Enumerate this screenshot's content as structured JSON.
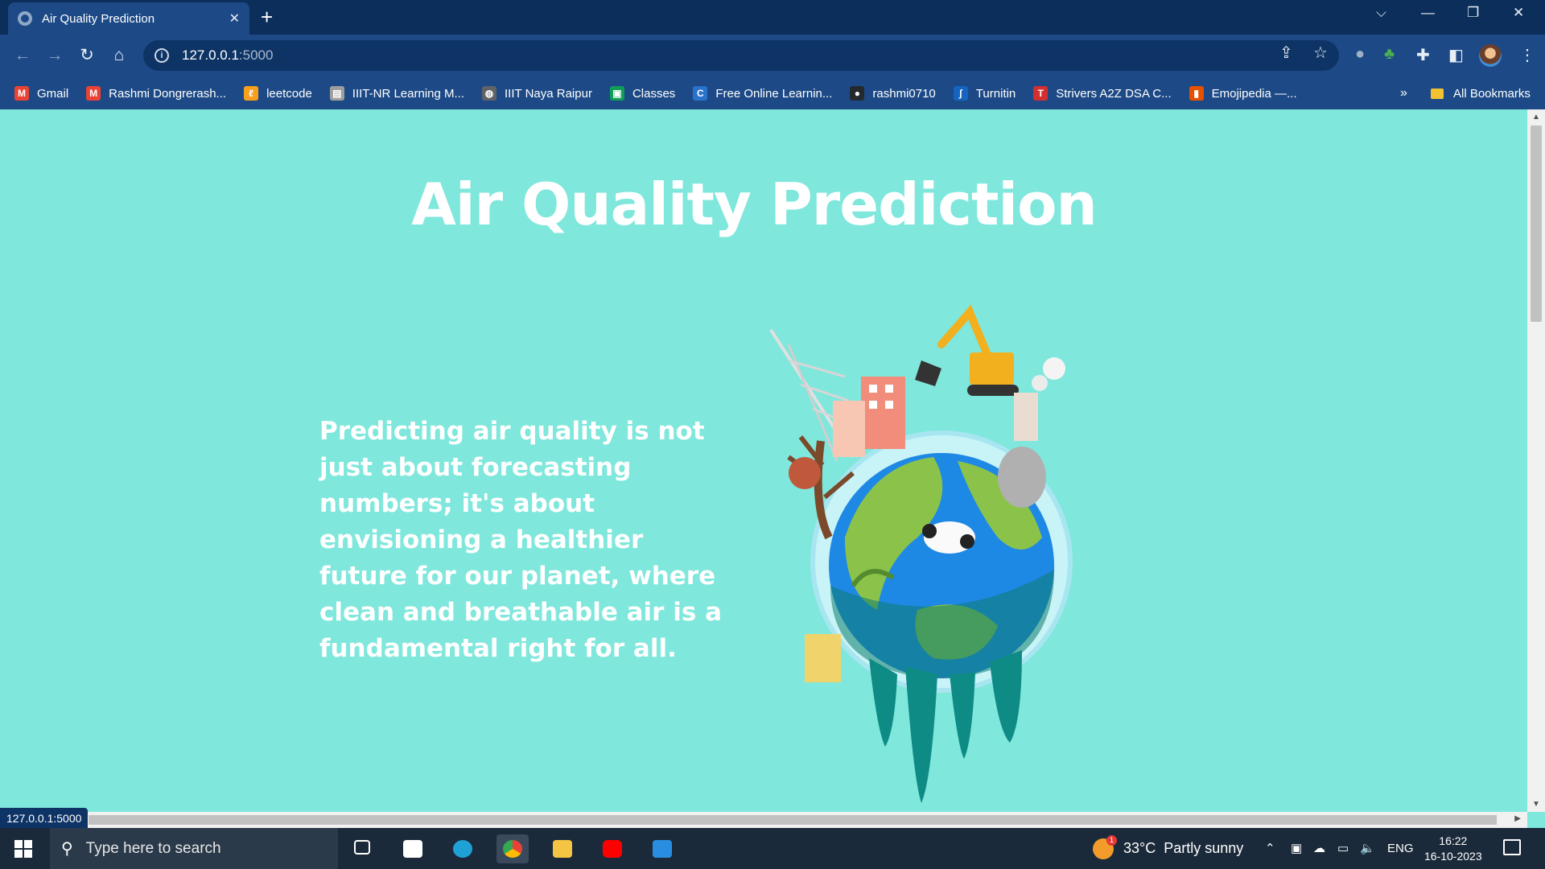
{
  "browser": {
    "tab_title": "Air Quality Prediction",
    "tab_close": "✕",
    "new_tab": "+",
    "window_controls": {
      "search_tabs": "⌵",
      "minimize": "—",
      "restore": "❐",
      "close": "✕"
    },
    "url_host": "127.0.0.1",
    "url_port": ":5000",
    "status_url": "127.0.0.1:5000"
  },
  "bookmarks": [
    {
      "label": "Gmail",
      "icon": "gmail-icon",
      "color": "#ea4335",
      "glyph": "M"
    },
    {
      "label": "Rashmi Dongrerash...",
      "icon": "gmail-icon",
      "color": "#ea4335",
      "glyph": "M"
    },
    {
      "label": "leetcode",
      "icon": "leetcode-icon",
      "color": "#f89f1b",
      "glyph": "ℓ"
    },
    {
      "label": "IIIT-NR Learning M...",
      "icon": "page-icon",
      "color": "#9e9e9e",
      "glyph": "▤"
    },
    {
      "label": "IIIT Naya Raipur",
      "icon": "globe-icon",
      "color": "#5f6368",
      "glyph": "◍"
    },
    {
      "label": "Classes",
      "icon": "classroom-icon",
      "color": "#0f9d58",
      "glyph": "▣"
    },
    {
      "label": "Free Online Learnin...",
      "icon": "coursera-icon",
      "color": "#2a73cc",
      "glyph": "C"
    },
    {
      "label": "rashmi0710",
      "icon": "github-icon",
      "color": "#24292e",
      "glyph": "●"
    },
    {
      "label": "Turnitin",
      "icon": "turnitin-icon",
      "color": "#1565c0",
      "glyph": "ʃ"
    },
    {
      "label": "Strivers A2Z DSA C...",
      "icon": "tuf-icon",
      "color": "#d32f2f",
      "glyph": "T"
    },
    {
      "label": "Emojipedia —...",
      "icon": "emojipedia-icon",
      "color": "#e65100",
      "glyph": "▮"
    }
  ],
  "bookmarks_more": "»",
  "bookmarks_all": "All Bookmarks",
  "page": {
    "title": "Air Quality Prediction",
    "tagline": "Predicting air quality is not just about forecasting numbers; it's about envisioning a healthier future for our planet, where clean and breathable air is a fundamental right for all.",
    "background_color": "#7fe7dc",
    "image_description_icon": "melting-earth-illustration"
  },
  "taskbar": {
    "search_placeholder": "Type here to search",
    "weather_temp": "33°C",
    "weather_text": "Partly sunny",
    "language": "ENG",
    "time": "16:22",
    "date": "16-10-2023"
  }
}
